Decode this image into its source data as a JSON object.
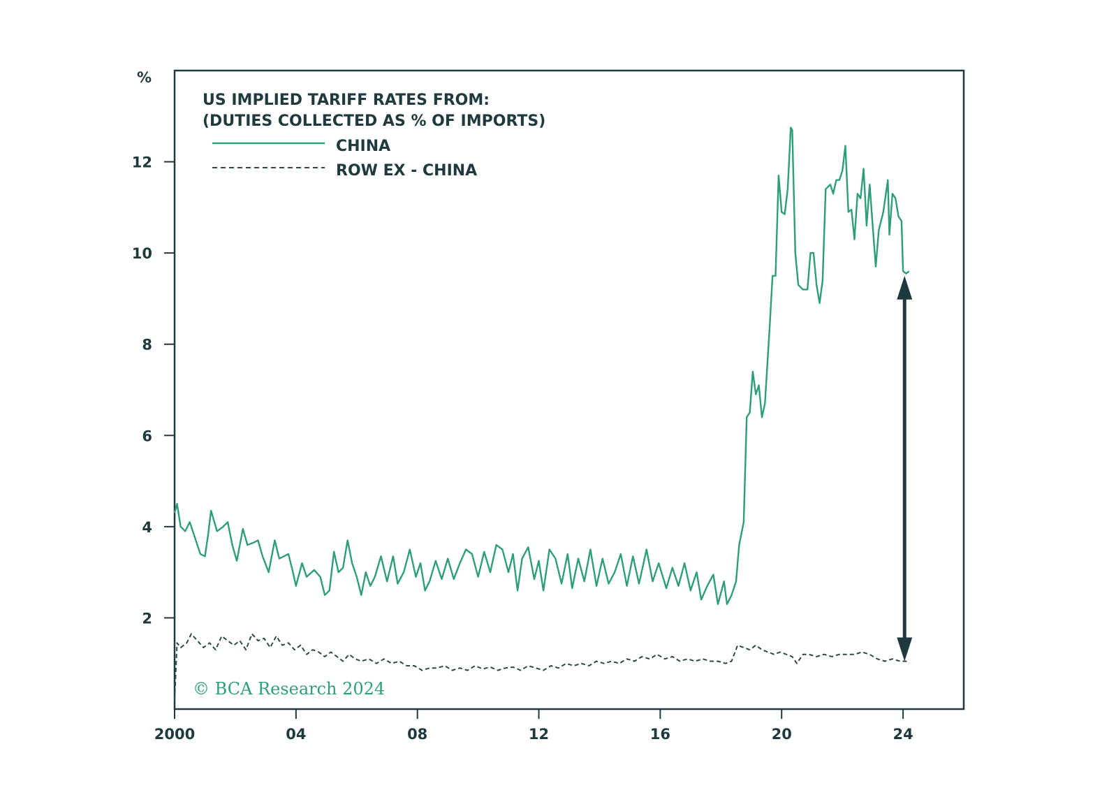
{
  "chart_data": {
    "type": "line",
    "title": "US IMPLIED TARIFF RATES FROM:",
    "subtitle": "(DUTIES COLLECTED AS % OF IMPORTS)",
    "ylabel": "%",
    "xlabel": "",
    "xlim": [
      2000,
      2026
    ],
    "ylim": [
      0,
      14
    ],
    "x_ticks": [
      2000,
      2004,
      2008,
      2012,
      2016,
      2020,
      2024
    ],
    "x_tick_labels": [
      "2000",
      "04",
      "08",
      "12",
      "16",
      "20",
      "24"
    ],
    "y_ticks": [
      2,
      4,
      6,
      8,
      10,
      12
    ],
    "y_tick_labels": [
      "2",
      "4",
      "6",
      "8",
      "10",
      "12"
    ],
    "grid": false,
    "legend_position": "top-left",
    "series": [
      {
        "name": "CHINA",
        "style": "solid",
        "color": "#2e9e7a",
        "points": [
          [
            2000.0,
            4.3
          ],
          [
            2000.08,
            4.5
          ],
          [
            2000.2,
            4.0
          ],
          [
            2000.35,
            3.9
          ],
          [
            2000.5,
            4.1
          ],
          [
            2000.7,
            3.7
          ],
          [
            2000.85,
            3.4
          ],
          [
            2001.0,
            3.35
          ],
          [
            2001.1,
            3.8
          ],
          [
            2001.2,
            4.35
          ],
          [
            2001.4,
            3.9
          ],
          [
            2001.6,
            4.0
          ],
          [
            2001.75,
            4.1
          ],
          [
            2001.9,
            3.6
          ],
          [
            2002.05,
            3.25
          ],
          [
            2002.25,
            3.95
          ],
          [
            2002.4,
            3.6
          ],
          [
            2002.6,
            3.65
          ],
          [
            2002.75,
            3.7
          ],
          [
            2002.9,
            3.35
          ],
          [
            2003.1,
            3.0
          ],
          [
            2003.3,
            3.7
          ],
          [
            2003.45,
            3.3
          ],
          [
            2003.6,
            3.35
          ],
          [
            2003.75,
            3.4
          ],
          [
            2003.9,
            3.0
          ],
          [
            2004.0,
            2.7
          ],
          [
            2004.2,
            3.2
          ],
          [
            2004.35,
            2.9
          ],
          [
            2004.6,
            3.05
          ],
          [
            2004.8,
            2.9
          ],
          [
            2004.95,
            2.5
          ],
          [
            2005.1,
            2.6
          ],
          [
            2005.25,
            3.45
          ],
          [
            2005.4,
            3.0
          ],
          [
            2005.55,
            3.1
          ],
          [
            2005.7,
            3.7
          ],
          [
            2005.85,
            3.2
          ],
          [
            2006.0,
            2.9
          ],
          [
            2006.15,
            2.5
          ],
          [
            2006.3,
            3.0
          ],
          [
            2006.45,
            2.7
          ],
          [
            2006.6,
            2.9
          ],
          [
            2006.8,
            3.35
          ],
          [
            2007.0,
            2.8
          ],
          [
            2007.2,
            3.35
          ],
          [
            2007.35,
            2.75
          ],
          [
            2007.55,
            3.0
          ],
          [
            2007.75,
            3.5
          ],
          [
            2007.95,
            2.9
          ],
          [
            2008.1,
            3.2
          ],
          [
            2008.25,
            2.6
          ],
          [
            2008.4,
            2.8
          ],
          [
            2008.6,
            3.25
          ],
          [
            2008.8,
            2.85
          ],
          [
            2009.0,
            3.3
          ],
          [
            2009.2,
            2.85
          ],
          [
            2009.4,
            3.2
          ],
          [
            2009.6,
            3.5
          ],
          [
            2009.8,
            3.4
          ],
          [
            2010.0,
            2.9
          ],
          [
            2010.2,
            3.45
          ],
          [
            2010.4,
            3.0
          ],
          [
            2010.6,
            3.6
          ],
          [
            2010.8,
            3.5
          ],
          [
            2011.0,
            3.0
          ],
          [
            2011.15,
            3.4
          ],
          [
            2011.3,
            2.6
          ],
          [
            2011.45,
            3.3
          ],
          [
            2011.65,
            3.55
          ],
          [
            2011.85,
            2.85
          ],
          [
            2012.0,
            3.25
          ],
          [
            2012.15,
            2.6
          ],
          [
            2012.35,
            3.5
          ],
          [
            2012.55,
            3.3
          ],
          [
            2012.75,
            2.75
          ],
          [
            2012.95,
            3.4
          ],
          [
            2013.1,
            2.65
          ],
          [
            2013.3,
            3.3
          ],
          [
            2013.5,
            2.8
          ],
          [
            2013.7,
            3.5
          ],
          [
            2013.9,
            2.7
          ],
          [
            2014.1,
            3.3
          ],
          [
            2014.3,
            2.75
          ],
          [
            2014.5,
            3.0
          ],
          [
            2014.7,
            3.4
          ],
          [
            2014.9,
            2.7
          ],
          [
            2015.1,
            3.35
          ],
          [
            2015.3,
            2.75
          ],
          [
            2015.55,
            3.5
          ],
          [
            2015.75,
            2.8
          ],
          [
            2015.95,
            3.2
          ],
          [
            2016.2,
            2.65
          ],
          [
            2016.4,
            3.1
          ],
          [
            2016.6,
            2.7
          ],
          [
            2016.8,
            3.2
          ],
          [
            2017.0,
            2.6
          ],
          [
            2017.2,
            3.0
          ],
          [
            2017.35,
            2.4
          ],
          [
            2017.55,
            2.7
          ],
          [
            2017.75,
            2.95
          ],
          [
            2017.9,
            2.3
          ],
          [
            2018.1,
            2.8
          ],
          [
            2018.2,
            2.3
          ],
          [
            2018.35,
            2.5
          ],
          [
            2018.5,
            2.8
          ],
          [
            2018.6,
            3.6
          ],
          [
            2018.75,
            4.1
          ],
          [
            2018.85,
            6.4
          ],
          [
            2018.95,
            6.5
          ],
          [
            2019.05,
            7.4
          ],
          [
            2019.15,
            6.9
          ],
          [
            2019.25,
            7.1
          ],
          [
            2019.35,
            6.4
          ],
          [
            2019.45,
            6.7
          ],
          [
            2019.6,
            8.3
          ],
          [
            2019.7,
            9.5
          ],
          [
            2019.8,
            9.5
          ],
          [
            2019.9,
            11.7
          ],
          [
            2020.0,
            10.9
          ],
          [
            2020.1,
            10.85
          ],
          [
            2020.2,
            11.4
          ],
          [
            2020.3,
            12.75
          ],
          [
            2020.35,
            12.7
          ],
          [
            2020.45,
            10.0
          ],
          [
            2020.55,
            9.3
          ],
          [
            2020.7,
            9.2
          ],
          [
            2020.85,
            9.2
          ],
          [
            2020.95,
            10.0
          ],
          [
            2021.05,
            10.0
          ],
          [
            2021.15,
            9.3
          ],
          [
            2021.25,
            8.9
          ],
          [
            2021.35,
            9.4
          ],
          [
            2021.45,
            11.4
          ],
          [
            2021.6,
            11.5
          ],
          [
            2021.7,
            11.3
          ],
          [
            2021.8,
            11.6
          ],
          [
            2021.9,
            11.6
          ],
          [
            2022.0,
            11.8
          ],
          [
            2022.1,
            12.35
          ],
          [
            2022.2,
            10.9
          ],
          [
            2022.3,
            10.95
          ],
          [
            2022.4,
            10.3
          ],
          [
            2022.5,
            11.3
          ],
          [
            2022.6,
            11.2
          ],
          [
            2022.7,
            11.85
          ],
          [
            2022.8,
            10.6
          ],
          [
            2022.9,
            11.5
          ],
          [
            2023.0,
            10.6
          ],
          [
            2023.1,
            9.7
          ],
          [
            2023.2,
            10.5
          ],
          [
            2023.35,
            10.9
          ],
          [
            2023.5,
            11.6
          ],
          [
            2023.55,
            10.4
          ],
          [
            2023.65,
            11.3
          ],
          [
            2023.75,
            11.2
          ],
          [
            2023.85,
            10.8
          ],
          [
            2023.95,
            10.7
          ],
          [
            2024.0,
            9.6
          ],
          [
            2024.1,
            9.55
          ],
          [
            2024.2,
            9.6
          ]
        ]
      },
      {
        "name": "ROW EX - CHINA",
        "style": "dashed",
        "color": "#2b4a48",
        "points": [
          [
            2000.0,
            0.2
          ],
          [
            2000.08,
            1.45
          ],
          [
            2000.2,
            1.35
          ],
          [
            2000.4,
            1.45
          ],
          [
            2000.55,
            1.65
          ],
          [
            2000.75,
            1.5
          ],
          [
            2000.95,
            1.35
          ],
          [
            2001.15,
            1.45
          ],
          [
            2001.35,
            1.3
          ],
          [
            2001.55,
            1.6
          ],
          [
            2001.75,
            1.5
          ],
          [
            2001.95,
            1.4
          ],
          [
            2002.15,
            1.5
          ],
          [
            2002.35,
            1.3
          ],
          [
            2002.55,
            1.65
          ],
          [
            2002.75,
            1.5
          ],
          [
            2002.95,
            1.55
          ],
          [
            2003.15,
            1.35
          ],
          [
            2003.35,
            1.6
          ],
          [
            2003.55,
            1.4
          ],
          [
            2003.75,
            1.45
          ],
          [
            2003.95,
            1.3
          ],
          [
            2004.15,
            1.4
          ],
          [
            2004.35,
            1.2
          ],
          [
            2004.55,
            1.3
          ],
          [
            2004.75,
            1.25
          ],
          [
            2004.95,
            1.15
          ],
          [
            2005.15,
            1.25
          ],
          [
            2005.35,
            1.15
          ],
          [
            2005.55,
            1.05
          ],
          [
            2005.75,
            1.2
          ],
          [
            2005.95,
            1.1
          ],
          [
            2006.15,
            1.05
          ],
          [
            2006.4,
            1.1
          ],
          [
            2006.65,
            1.0
          ],
          [
            2006.9,
            1.1
          ],
          [
            2007.15,
            1.0
          ],
          [
            2007.4,
            1.05
          ],
          [
            2007.65,
            0.95
          ],
          [
            2007.9,
            0.95
          ],
          [
            2008.15,
            0.85
          ],
          [
            2008.4,
            0.9
          ],
          [
            2008.65,
            0.9
          ],
          [
            2008.9,
            0.95
          ],
          [
            2009.15,
            0.85
          ],
          [
            2009.4,
            0.9
          ],
          [
            2009.65,
            0.85
          ],
          [
            2009.9,
            0.95
          ],
          [
            2010.15,
            0.88
          ],
          [
            2010.4,
            0.92
          ],
          [
            2010.65,
            0.85
          ],
          [
            2010.9,
            0.9
          ],
          [
            2011.15,
            0.92
          ],
          [
            2011.4,
            0.85
          ],
          [
            2011.65,
            0.95
          ],
          [
            2011.9,
            0.9
          ],
          [
            2012.15,
            0.85
          ],
          [
            2012.4,
            0.95
          ],
          [
            2012.65,
            0.9
          ],
          [
            2012.9,
            1.0
          ],
          [
            2013.15,
            0.95
          ],
          [
            2013.4,
            1.0
          ],
          [
            2013.65,
            0.95
          ],
          [
            2013.9,
            1.05
          ],
          [
            2014.15,
            1.0
          ],
          [
            2014.4,
            1.05
          ],
          [
            2014.65,
            1.0
          ],
          [
            2014.9,
            1.1
          ],
          [
            2015.15,
            1.05
          ],
          [
            2015.4,
            1.15
          ],
          [
            2015.65,
            1.1
          ],
          [
            2015.9,
            1.2
          ],
          [
            2016.15,
            1.1
          ],
          [
            2016.4,
            1.15
          ],
          [
            2016.65,
            1.05
          ],
          [
            2016.9,
            1.1
          ],
          [
            2017.15,
            1.05
          ],
          [
            2017.4,
            1.1
          ],
          [
            2017.65,
            1.05
          ],
          [
            2017.9,
            1.05
          ],
          [
            2018.15,
            1.0
          ],
          [
            2018.35,
            1.05
          ],
          [
            2018.55,
            1.4
          ],
          [
            2018.75,
            1.35
          ],
          [
            2018.95,
            1.3
          ],
          [
            2019.15,
            1.4
          ],
          [
            2019.35,
            1.3
          ],
          [
            2019.55,
            1.25
          ],
          [
            2019.75,
            1.2
          ],
          [
            2019.95,
            1.25
          ],
          [
            2020.15,
            1.2
          ],
          [
            2020.35,
            1.15
          ],
          [
            2020.5,
            1.0
          ],
          [
            2020.7,
            1.2
          ],
          [
            2020.9,
            1.2
          ],
          [
            2021.15,
            1.15
          ],
          [
            2021.4,
            1.2
          ],
          [
            2021.65,
            1.15
          ],
          [
            2021.9,
            1.2
          ],
          [
            2022.15,
            1.2
          ],
          [
            2022.4,
            1.2
          ],
          [
            2022.65,
            1.25
          ],
          [
            2022.9,
            1.2
          ],
          [
            2023.15,
            1.1
          ],
          [
            2023.4,
            1.05
          ],
          [
            2023.65,
            1.1
          ],
          [
            2023.9,
            1.05
          ],
          [
            2024.1,
            1.05
          ],
          [
            2024.2,
            1.0
          ]
        ]
      }
    ],
    "annotations": [
      {
        "type": "double-arrow",
        "x": 2024.05,
        "y_from": 9.5,
        "y_to": 1.05,
        "color": "#1f3a3f"
      }
    ],
    "watermark": "© BCA Research 2024"
  },
  "colors": {
    "china": "#2e9e7a",
    "row": "#2b4a48",
    "axis": "#1f3a3f",
    "watermark": "#2e9e7a"
  }
}
